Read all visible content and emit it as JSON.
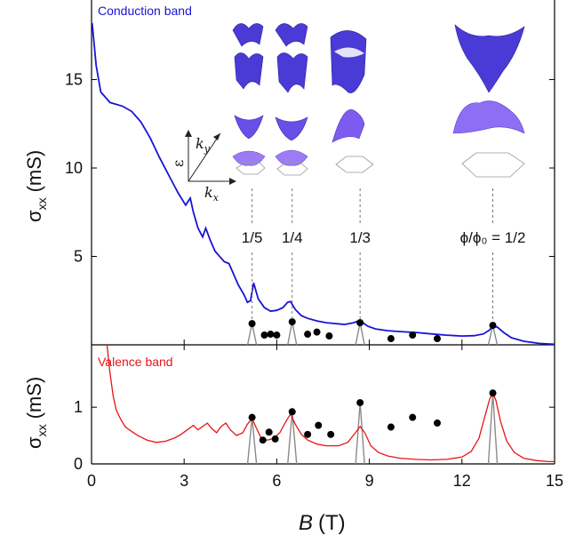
{
  "chart_data": [
    {
      "type": "line",
      "panel": "top",
      "legend": "Conduction band",
      "legend_color": "#1a14d6",
      "ylabel_main": "σ",
      "ylabel_sub": "xx",
      "ylabel_unit": "(mS)",
      "xlim": [
        0,
        15
      ],
      "ylim": [
        0,
        19.5
      ],
      "yticks": [
        5,
        10,
        15
      ],
      "ytick_labels": [
        "5",
        "10",
        "15"
      ],
      "curve": {
        "name": "Conduction band",
        "color": "#1a14d6",
        "x": [
          0.02,
          0.15,
          0.3,
          0.6,
          1.0,
          1.3,
          1.6,
          1.9,
          2.2,
          2.5,
          2.8,
          3.05,
          3.2,
          3.3,
          3.45,
          3.6,
          3.7,
          3.85,
          4.0,
          4.15,
          4.3,
          4.45,
          4.6,
          4.75,
          4.95,
          5.05,
          5.15,
          5.25,
          5.4,
          5.6,
          5.8,
          6.0,
          6.2,
          6.35,
          6.45,
          6.6,
          6.8,
          7.0,
          7.3,
          7.6,
          7.9,
          8.2,
          8.5,
          8.65,
          8.75,
          8.95,
          9.2,
          9.6,
          10.0,
          10.5,
          11.0,
          11.5,
          12.0,
          12.4,
          12.7,
          12.9,
          13.0,
          13.15,
          13.35,
          13.6,
          14.0,
          14.5,
          15.0
        ],
        "y": [
          18.2,
          15.8,
          14.3,
          13.7,
          13.5,
          13.2,
          12.6,
          11.7,
          10.6,
          9.6,
          8.6,
          7.9,
          8.3,
          7.5,
          6.6,
          6.1,
          6.6,
          5.9,
          5.3,
          5.0,
          4.7,
          4.6,
          4.0,
          3.4,
          2.8,
          2.4,
          2.5,
          3.5,
          2.6,
          2.1,
          1.9,
          1.95,
          2.1,
          2.4,
          2.45,
          2.0,
          1.65,
          1.5,
          1.35,
          1.25,
          1.2,
          1.15,
          1.25,
          1.35,
          1.3,
          1.05,
          0.9,
          0.8,
          0.75,
          0.7,
          0.62,
          0.55,
          0.5,
          0.52,
          0.62,
          0.85,
          1.05,
          1.0,
          0.7,
          0.4,
          0.2,
          0.08,
          0.03
        ]
      },
      "gray_peaks": [
        {
          "x": 5.2,
          "height": 1.2
        },
        {
          "x": 6.5,
          "height": 1.3
        },
        {
          "x": 8.7,
          "height": 1.25
        },
        {
          "x": 13.0,
          "height": 1.1
        }
      ],
      "dots": [
        {
          "x": 5.2,
          "y": 1.2
        },
        {
          "x": 5.6,
          "y": 0.55
        },
        {
          "x": 5.8,
          "y": 0.6
        },
        {
          "x": 6.0,
          "y": 0.55
        },
        {
          "x": 6.5,
          "y": 1.3
        },
        {
          "x": 7.0,
          "y": 0.6
        },
        {
          "x": 7.3,
          "y": 0.72
        },
        {
          "x": 7.7,
          "y": 0.5
        },
        {
          "x": 8.7,
          "y": 1.25
        },
        {
          "x": 9.7,
          "y": 0.35
        },
        {
          "x": 10.4,
          "y": 0.55
        },
        {
          "x": 11.2,
          "y": 0.35
        },
        {
          "x": 13.0,
          "y": 1.1
        }
      ],
      "flux_markers": [
        {
          "label": "1/5",
          "x": 5.2
        },
        {
          "label": "1/4",
          "x": 6.5
        },
        {
          "label": "1/3",
          "x": 8.7
        },
        {
          "label": "ϕ/ϕ₀ = 1/2",
          "x": 13.0
        }
      ]
    },
    {
      "type": "line",
      "panel": "bottom",
      "legend": "Valence band",
      "legend_color": "#e81515",
      "ylabel_main": "σ",
      "ylabel_sub": "xx",
      "ylabel_unit": "(mS)",
      "xlabel_main": "B",
      "xlabel_unit": "(T)",
      "xlim": [
        0,
        15
      ],
      "ylim": [
        0,
        2.1
      ],
      "xticks": [
        0,
        3,
        6,
        9,
        12,
        15
      ],
      "xtick_labels": [
        "0",
        "3",
        "6",
        "9",
        "12",
        "15"
      ],
      "yticks": [
        0,
        1
      ],
      "ytick_labels": [
        "0",
        "1"
      ],
      "curve": {
        "name": "Valence band",
        "color": "#e81515",
        "x": [
          0.5,
          0.6,
          0.7,
          0.8,
          0.95,
          1.1,
          1.3,
          1.5,
          1.8,
          2.1,
          2.4,
          2.7,
          2.9,
          3.1,
          3.3,
          3.45,
          3.6,
          3.75,
          3.9,
          4.05,
          4.2,
          4.35,
          4.5,
          4.7,
          4.9,
          5.05,
          5.2,
          5.35,
          5.5,
          5.7,
          5.9,
          6.1,
          6.3,
          6.45,
          6.6,
          6.8,
          7.0,
          7.3,
          7.6,
          8.0,
          8.3,
          8.55,
          8.7,
          8.85,
          9.05,
          9.3,
          9.6,
          10.0,
          10.5,
          11.0,
          11.5,
          12.0,
          12.3,
          12.55,
          12.75,
          12.9,
          13.0,
          13.1,
          13.25,
          13.45,
          13.7,
          14.0,
          14.4,
          14.8,
          15.0
        ],
        "y": [
          2.1,
          1.6,
          1.2,
          0.95,
          0.78,
          0.65,
          0.57,
          0.5,
          0.42,
          0.38,
          0.4,
          0.46,
          0.52,
          0.6,
          0.68,
          0.6,
          0.66,
          0.72,
          0.62,
          0.55,
          0.66,
          0.72,
          0.6,
          0.5,
          0.55,
          0.7,
          0.8,
          0.62,
          0.45,
          0.42,
          0.45,
          0.55,
          0.75,
          0.88,
          0.7,
          0.52,
          0.42,
          0.35,
          0.32,
          0.32,
          0.38,
          0.55,
          0.66,
          0.55,
          0.32,
          0.2,
          0.14,
          0.1,
          0.08,
          0.07,
          0.08,
          0.12,
          0.22,
          0.45,
          0.85,
          1.15,
          1.25,
          1.12,
          0.75,
          0.4,
          0.2,
          0.1,
          0.06,
          0.04,
          0.04
        ]
      },
      "gray_peaks": [
        {
          "x": 5.2,
          "height": 0.82
        },
        {
          "x": 6.5,
          "height": 0.92
        },
        {
          "x": 8.7,
          "height": 1.08
        },
        {
          "x": 13.0,
          "height": 1.25
        }
      ],
      "dots": [
        {
          "x": 5.2,
          "y": 0.82
        },
        {
          "x": 5.55,
          "y": 0.42
        },
        {
          "x": 5.75,
          "y": 0.56
        },
        {
          "x": 5.95,
          "y": 0.44
        },
        {
          "x": 6.5,
          "y": 0.92
        },
        {
          "x": 7.0,
          "y": 0.52
        },
        {
          "x": 7.35,
          "y": 0.68
        },
        {
          "x": 7.75,
          "y": 0.52
        },
        {
          "x": 8.7,
          "y": 1.08
        },
        {
          "x": 9.7,
          "y": 0.65
        },
        {
          "x": 10.4,
          "y": 0.82
        },
        {
          "x": 11.2,
          "y": 0.72
        },
        {
          "x": 13.0,
          "y": 1.25
        }
      ]
    }
  ],
  "inset": {
    "axis_omega": "ε",
    "axis_ky": "k",
    "axis_ky_sub": "y",
    "axis_kx": "k",
    "axis_kx_sub": "x",
    "surface_colors": [
      "#4a3bd6",
      "#7c5cf0",
      "#9e7cf6"
    ]
  }
}
